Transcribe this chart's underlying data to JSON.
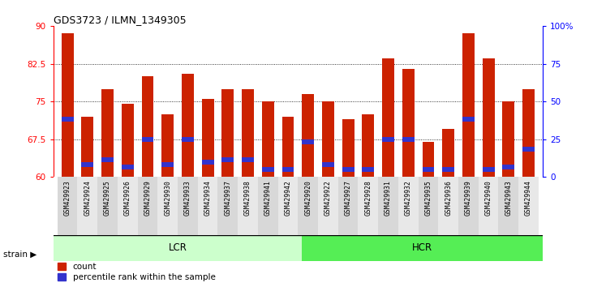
{
  "title": "GDS3723 / ILMN_1349305",
  "samples": [
    "GSM429923",
    "GSM429924",
    "GSM429925",
    "GSM429926",
    "GSM429929",
    "GSM429930",
    "GSM429933",
    "GSM429934",
    "GSM429937",
    "GSM429938",
    "GSM429941",
    "GSM429942",
    "GSM429920",
    "GSM429922",
    "GSM429927",
    "GSM429928",
    "GSM429931",
    "GSM429932",
    "GSM429935",
    "GSM429936",
    "GSM429939",
    "GSM429940",
    "GSM429943",
    "GSM429944"
  ],
  "bar_heights": [
    88.5,
    72.0,
    77.5,
    74.5,
    80.0,
    72.5,
    80.5,
    75.5,
    77.5,
    77.5,
    75.0,
    72.0,
    76.5,
    75.0,
    71.5,
    72.5,
    83.5,
    81.5,
    67.0,
    69.5,
    88.5,
    83.5,
    75.0,
    77.5
  ],
  "blue_markers": [
    71.5,
    62.5,
    63.5,
    62.0,
    67.5,
    62.5,
    67.5,
    63.0,
    63.5,
    63.5,
    61.5,
    61.5,
    67.0,
    62.5,
    61.5,
    61.5,
    67.5,
    67.5,
    61.5,
    61.5,
    71.5,
    61.5,
    62.0,
    65.5
  ],
  "lcr_samples": 12,
  "hcr_samples": 12,
  "lcr_label": "LCR",
  "hcr_label": "HCR",
  "strain_label": "strain",
  "ymin": 60,
  "ymax": 90,
  "yticks": [
    60,
    67.5,
    75,
    82.5,
    90
  ],
  "ytick_labels": [
    "60",
    "67.5",
    "75",
    "82.5",
    "90"
  ],
  "right_yticks": [
    0,
    25,
    50,
    75,
    100
  ],
  "right_ytick_labels": [
    "0",
    "25",
    "50",
    "75",
    "100%"
  ],
  "bar_color": "#cc2200",
  "blue_color": "#3333cc",
  "lcr_bg": "#ccffcc",
  "hcr_bg": "#55ee55",
  "tick_bg_even": "#d8d8d8",
  "tick_bg_odd": "#e8e8e8",
  "grid_color": "#000000",
  "bar_width": 0.6,
  "legend_count": "count",
  "legend_pct": "percentile rank within the sample"
}
